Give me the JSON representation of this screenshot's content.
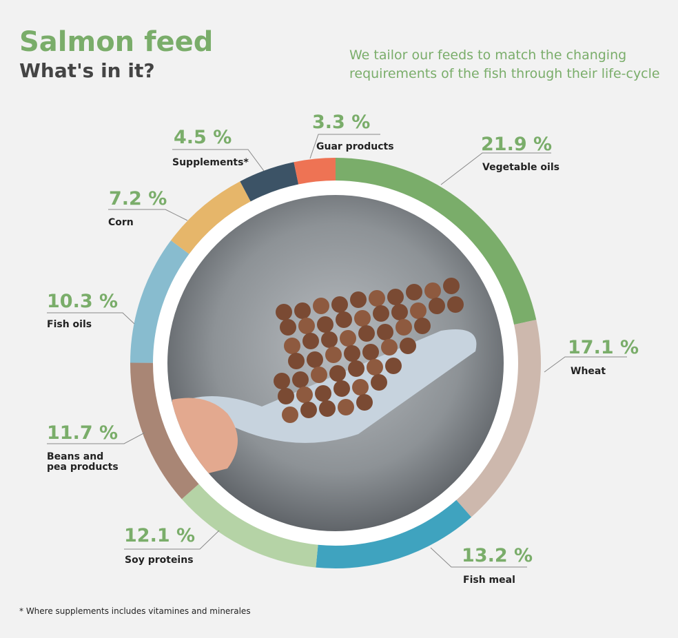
{
  "chart_data": {
    "type": "donut",
    "title": "Salmon feed",
    "subtitle": "What's in it?",
    "description": [
      "We tailor our feeds to match the changing",
      "requirements of the fish through their life-cycle"
    ],
    "categories": [
      "Vegetable oils",
      "Wheat",
      "Fish meal",
      "Soy proteins",
      [
        "Beans and",
        "pea products"
      ],
      "Fish oils",
      "Corn",
      "Supplements*",
      "Guar products"
    ],
    "values": [
      21.9,
      17.1,
      13.2,
      12.1,
      11.7,
      10.3,
      7.2,
      4.5,
      3.3
    ],
    "value_labels": [
      "21.9 %",
      "17.1 %",
      "13.2 %",
      "12.1 %",
      "11.7 %",
      "10.3 %",
      "7.2 %",
      "4.5 %",
      "3.3 %"
    ],
    "colors": [
      "#7aad6a",
      "#cdb8ad",
      "#3fa3bf",
      "#b5d3a6",
      "#a98675",
      "#88bccf",
      "#e6b66a",
      "#3c5366",
      "#ee7354"
    ],
    "footnote": "* Where supplements includes vitamines and minerales"
  }
}
